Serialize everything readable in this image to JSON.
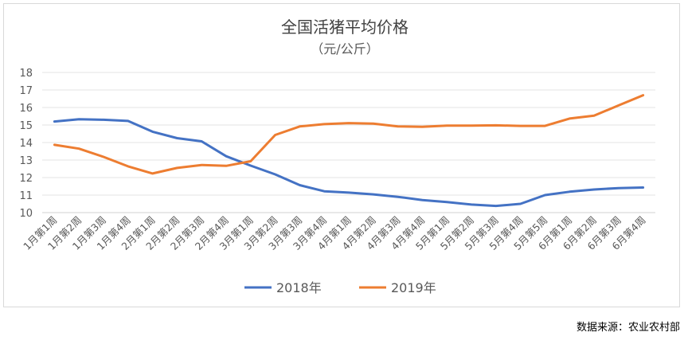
{
  "chart_data": {
    "type": "line",
    "title": "全国活猪平均价格",
    "subtitle": "（元/公斤）",
    "categories": [
      "1月第1周",
      "1月第2周",
      "1月第3周",
      "1月第4周",
      "2月第1周",
      "2月第2周",
      "2月第3周",
      "2月第4周",
      "3月第1周",
      "3月第2周",
      "3月第3周",
      "3月第4周",
      "4月第1周",
      "4月第2周",
      "4月第3周",
      "4月第4周",
      "5月第1周",
      "5月第2周",
      "5月第3周",
      "5月第4周",
      "5月第5周",
      "6月第1周",
      "6月第2周",
      "6月第3周",
      "6月第4周"
    ],
    "series": [
      {
        "name": "2018年",
        "color": "#4472c4",
        "values": [
          15.2,
          15.33,
          15.3,
          15.23,
          14.62,
          14.25,
          14.07,
          13.22,
          12.68,
          12.18,
          11.57,
          11.22,
          11.14,
          11.04,
          10.9,
          10.72,
          10.6,
          10.46,
          10.38,
          10.5,
          11.0,
          11.19,
          11.32,
          11.4,
          11.43
        ]
      },
      {
        "name": "2019年",
        "color": "#ed7d31",
        "values": [
          13.87,
          13.65,
          13.18,
          12.64,
          12.23,
          12.55,
          12.72,
          12.67,
          12.93,
          14.43,
          14.92,
          15.05,
          15.11,
          15.08,
          14.92,
          14.9,
          14.97,
          14.97,
          14.98,
          14.95,
          14.95,
          15.37,
          15.53,
          16.12,
          16.7
        ]
      }
    ],
    "ylim": [
      10,
      18
    ],
    "yticks": [
      10,
      11,
      12,
      13,
      14,
      15,
      16,
      17,
      18
    ],
    "grid": true,
    "legend": "bottom"
  },
  "source_note": "数据来源：农业农村部"
}
